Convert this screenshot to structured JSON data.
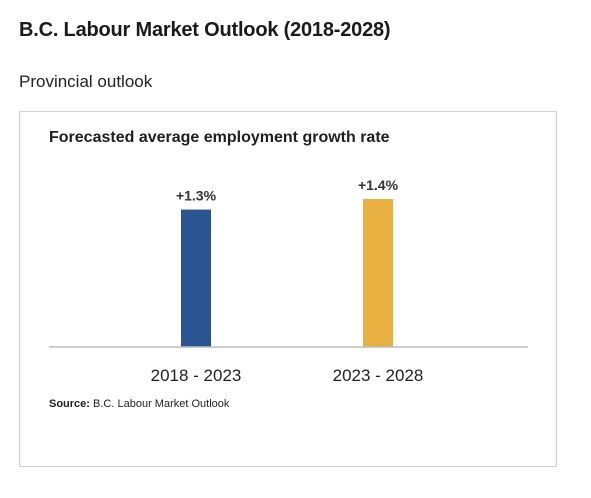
{
  "page": {
    "title": "B.C. Labour Market Outlook (2018-2028)",
    "section_title": "Provincial outlook"
  },
  "chart_card": {
    "source_label": "Source:",
    "source_text": "B.C. Labour Market Outlook"
  },
  "chart_data": {
    "type": "bar",
    "title": "Forecasted average employment growth rate",
    "xlabel": "",
    "ylabel": "",
    "categories": [
      "2018 - 2023",
      "2023 - 2028"
    ],
    "values": [
      1.3,
      1.4
    ],
    "data_labels": [
      "+1.3%",
      "+1.4%"
    ],
    "bar_colors": [
      "#2b5592",
      "#e8b041"
    ],
    "ylim": [
      0,
      1.4
    ],
    "grid": false,
    "legend": "none"
  }
}
